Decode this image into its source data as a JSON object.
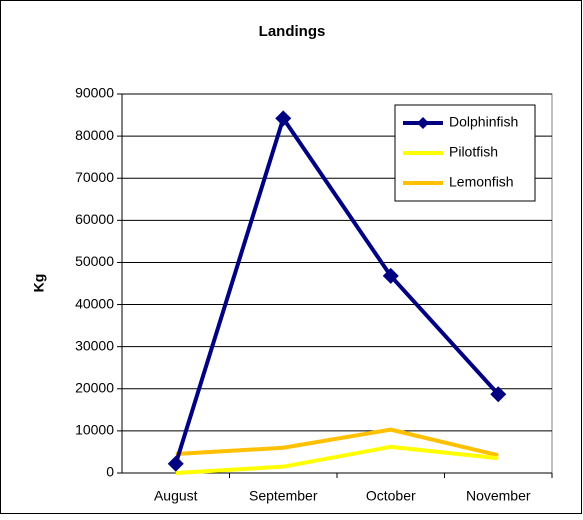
{
  "chart_data": {
    "type": "line",
    "title": "Landings",
    "y_label": "Kg",
    "categories": [
      "August",
      "September",
      "October",
      "November"
    ],
    "series": [
      {
        "name": "Dolphinfish",
        "color": "#000080",
        "marker": "diamond",
        "values": [
          2200,
          84200,
          46800,
          18700
        ]
      },
      {
        "name": "Pilotfish",
        "color": "#ffff00",
        "values": [
          0,
          1500,
          6200,
          3500
        ]
      },
      {
        "name": "Lemonfish",
        "color": "#ffc000",
        "values": [
          4500,
          6000,
          10300,
          4200
        ]
      }
    ],
    "ylim": [
      0,
      90000
    ],
    "yticks": [
      0,
      10000,
      20000,
      30000,
      40000,
      50000,
      60000,
      70000,
      80000,
      90000
    ],
    "grid": true,
    "legend": "top-right"
  }
}
